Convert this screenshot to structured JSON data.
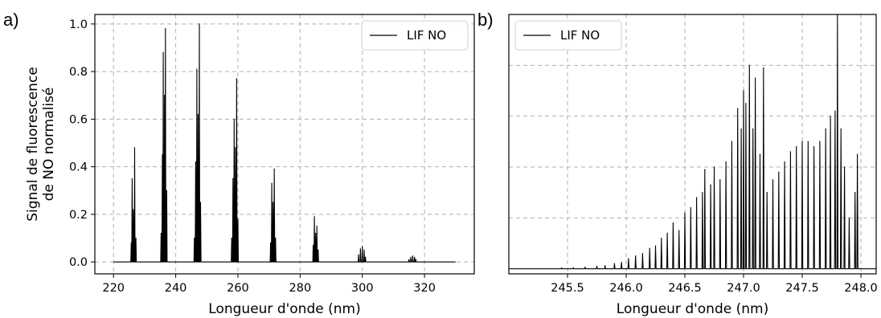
{
  "chart_data": [
    {
      "panel_label": "a)",
      "type": "line",
      "xlabel": "Longueur d'onde (nm)",
      "ylabel": [
        "Signal de fluorescence",
        "de NO normalisé"
      ],
      "xlim": [
        214,
        336
      ],
      "ylim": [
        -0.05,
        1.04
      ],
      "xticks": [
        220,
        240,
        260,
        280,
        300,
        320
      ],
      "yticks": [
        0.0,
        0.2,
        0.4,
        0.6,
        0.8,
        1.0
      ],
      "ytick_labels": [
        "0.0",
        "0.2",
        "0.4",
        "0.6",
        "0.8",
        "1.0"
      ],
      "grid": true,
      "legend": {
        "position": "top-right",
        "entries": [
          "LIF NO"
        ]
      },
      "series": [
        {
          "name": "LIF NO",
          "color": "#000000",
          "baseline_range": [
            220,
            330
          ],
          "peaks": [
            [
              225.7,
              0.08
            ],
            [
              226.0,
              0.35
            ],
            [
              226.4,
              0.22
            ],
            [
              226.8,
              0.48
            ],
            [
              227.2,
              0.1
            ],
            [
              235.3,
              0.12
            ],
            [
              235.7,
              0.45
            ],
            [
              236.0,
              0.88
            ],
            [
              236.4,
              0.7
            ],
            [
              236.7,
              0.98
            ],
            [
              237.1,
              0.3
            ],
            [
              246.0,
              0.1
            ],
            [
              246.4,
              0.42
            ],
            [
              246.8,
              0.81
            ],
            [
              247.2,
              0.62
            ],
            [
              247.6,
              1.0
            ],
            [
              248.0,
              0.25
            ],
            [
              258.0,
              0.1
            ],
            [
              258.4,
              0.35
            ],
            [
              258.8,
              0.6
            ],
            [
              259.2,
              0.48
            ],
            [
              259.6,
              0.77
            ],
            [
              260.0,
              0.18
            ],
            [
              270.5,
              0.08
            ],
            [
              270.9,
              0.33
            ],
            [
              271.3,
              0.25
            ],
            [
              271.7,
              0.39
            ],
            [
              272.1,
              0.1
            ],
            [
              284.2,
              0.07
            ],
            [
              284.6,
              0.19
            ],
            [
              285.0,
              0.12
            ],
            [
              285.4,
              0.15
            ],
            [
              285.8,
              0.05
            ],
            [
              298.8,
              0.03
            ],
            [
              299.4,
              0.055
            ],
            [
              300.0,
              0.065
            ],
            [
              300.6,
              0.05
            ],
            [
              301.0,
              0.02
            ],
            [
              315.0,
              0.01
            ],
            [
              315.6,
              0.02
            ],
            [
              316.2,
              0.025
            ],
            [
              316.8,
              0.02
            ],
            [
              317.2,
              0.01
            ]
          ]
        }
      ]
    },
    {
      "panel_label": "b)",
      "type": "line",
      "xlabel": "Longueur d'onde (nm)",
      "xlim": [
        245.0,
        248.13
      ],
      "ylim": [
        -0.02,
        1.0
      ],
      "xticks": [
        245.5,
        246.0,
        246.5,
        247.0,
        247.5,
        248.0
      ],
      "xtick_labels": [
        "245.5",
        "246.0",
        "246.5",
        "247.0",
        "247.5",
        "248.0"
      ],
      "grid": true,
      "legend": {
        "position": "top-left",
        "entries": [
          "LIF NO"
        ]
      },
      "series": [
        {
          "name": "LIF NO",
          "color": "#000000",
          "baseline_range": [
            245.0,
            248.13
          ],
          "peaks": [
            [
              245.45,
              0.003
            ],
            [
              245.55,
              0.004
            ],
            [
              245.65,
              0.006
            ],
            [
              245.75,
              0.01
            ],
            [
              245.82,
              0.012
            ],
            [
              245.9,
              0.02
            ],
            [
              245.96,
              0.025
            ],
            [
              246.02,
              0.04
            ],
            [
              246.08,
              0.05
            ],
            [
              246.14,
              0.06
            ],
            [
              246.2,
              0.08
            ],
            [
              246.25,
              0.09
            ],
            [
              246.3,
              0.12
            ],
            [
              246.35,
              0.14
            ],
            [
              246.4,
              0.18
            ],
            [
              246.45,
              0.15
            ],
            [
              246.5,
              0.22
            ],
            [
              246.55,
              0.24
            ],
            [
              246.6,
              0.28
            ],
            [
              246.65,
              0.3
            ],
            [
              246.67,
              0.39
            ],
            [
              246.72,
              0.33
            ],
            [
              246.75,
              0.4
            ],
            [
              246.8,
              0.35
            ],
            [
              246.85,
              0.42
            ],
            [
              246.9,
              0.5
            ],
            [
              246.95,
              0.63
            ],
            [
              246.98,
              0.55
            ],
            [
              247.0,
              0.7
            ],
            [
              247.02,
              0.65
            ],
            [
              247.05,
              0.8
            ],
            [
              247.08,
              0.55
            ],
            [
              247.1,
              0.75
            ],
            [
              247.14,
              0.45
            ],
            [
              247.17,
              0.79
            ],
            [
              247.2,
              0.3
            ],
            [
              247.25,
              0.35
            ],
            [
              247.3,
              0.38
            ],
            [
              247.35,
              0.42
            ],
            [
              247.4,
              0.46
            ],
            [
              247.45,
              0.48
            ],
            [
              247.5,
              0.5
            ],
            [
              247.55,
              0.5
            ],
            [
              247.6,
              0.48
            ],
            [
              247.65,
              0.5
            ],
            [
              247.7,
              0.55
            ],
            [
              247.74,
              0.6
            ],
            [
              247.78,
              0.62
            ],
            [
              247.8,
              1.0
            ],
            [
              247.83,
              0.55
            ],
            [
              247.86,
              0.4
            ],
            [
              247.9,
              0.2
            ],
            [
              247.95,
              0.3
            ],
            [
              247.97,
              0.45
            ]
          ]
        }
      ]
    }
  ]
}
